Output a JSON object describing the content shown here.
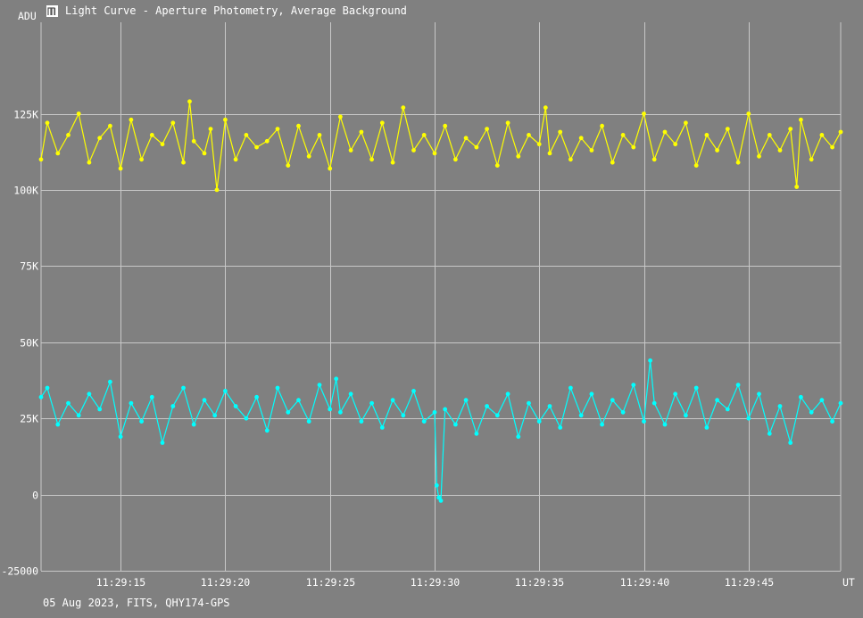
{
  "window": {
    "title": "Light Curve - Aperture Photometry, Average Background"
  },
  "footer": {
    "text": "05 Aug 2023, FITS, QHY174-GPS"
  },
  "colors": {
    "background": "#808080",
    "grid": "#c8c8c8",
    "series_yellow": "#ffff00",
    "series_cyan": "#00ffff"
  },
  "chart_data": {
    "type": "line",
    "ylabel": "ADU",
    "xlabel": "UT",
    "ylim": [
      -25000,
      155000
    ],
    "xlim": [
      11.2,
      49.4
    ],
    "y_ticks": [
      {
        "value": -25000,
        "label": "-25000"
      },
      {
        "value": 0,
        "label": "0"
      },
      {
        "value": 25000,
        "label": "25K"
      },
      {
        "value": 50000,
        "label": "50K"
      },
      {
        "value": 75000,
        "label": "75K"
      },
      {
        "value": 100000,
        "label": "100K"
      },
      {
        "value": 125000,
        "label": "125K"
      }
    ],
    "x_ticks": [
      {
        "value": 15,
        "label": "11:29:15"
      },
      {
        "value": 20,
        "label": "11:29:20"
      },
      {
        "value": 25,
        "label": "11:29:25"
      },
      {
        "value": 30,
        "label": "11:29:30"
      },
      {
        "value": 35,
        "label": "11:29:35"
      },
      {
        "value": 40,
        "label": "11:29:40"
      },
      {
        "value": 45,
        "label": "11:29:45"
      }
    ],
    "grid": true,
    "series": [
      {
        "color": "#ffff00",
        "x": [
          11.2,
          11.5,
          12,
          12.5,
          13,
          13.5,
          14,
          14.5,
          15,
          15.5,
          16,
          16.5,
          17,
          17.5,
          18,
          18.3,
          18.5,
          19,
          19.3,
          19.6,
          20,
          20.5,
          21,
          21.5,
          22,
          22.5,
          23,
          23.5,
          24,
          24.5,
          25,
          25.5,
          26,
          26.5,
          27,
          27.5,
          28,
          28.5,
          29,
          29.5,
          30,
          30.5,
          31,
          31.5,
          32,
          32.5,
          33,
          33.5,
          34,
          34.5,
          35,
          35.3,
          35.5,
          36,
          36.5,
          37,
          37.5,
          38,
          38.5,
          39,
          39.5,
          40,
          40.5,
          41,
          41.5,
          42,
          42.5,
          43,
          43.5,
          44,
          44.5,
          45,
          45.5,
          46,
          46.5,
          47,
          47.3,
          47.5,
          48,
          48.5,
          49,
          49.4
        ],
        "y": [
          110000,
          122000,
          112000,
          118000,
          125000,
          109000,
          117000,
          121000,
          107000,
          123000,
          110000,
          118000,
          115000,
          122000,
          109000,
          129000,
          116000,
          112000,
          120000,
          100000,
          123000,
          110000,
          118000,
          114000,
          116000,
          120000,
          108000,
          121000,
          111000,
          118000,
          107000,
          124000,
          113000,
          119000,
          110000,
          122000,
          109000,
          127000,
          113000,
          118000,
          112000,
          121000,
          110000,
          117000,
          114000,
          120000,
          108000,
          122000,
          111000,
          118000,
          115000,
          127000,
          112000,
          119000,
          110000,
          117000,
          113000,
          121000,
          109000,
          118000,
          114000,
          125000,
          110000,
          119000,
          115000,
          122000,
          108000,
          118000,
          113000,
          120000,
          109000,
          125000,
          111000,
          118000,
          113000,
          120000,
          101000,
          123000,
          110000,
          118000,
          114000,
          119000
        ]
      },
      {
        "color": "#00ffff",
        "x": [
          11.2,
          11.5,
          12,
          12.5,
          13,
          13.5,
          14,
          14.5,
          15,
          15.5,
          16,
          16.5,
          17,
          17.5,
          18,
          18.5,
          19,
          19.5,
          20,
          20.5,
          21,
          21.5,
          22,
          22.5,
          23,
          23.5,
          24,
          24.5,
          25,
          25.3,
          25.5,
          26,
          26.5,
          27,
          27.5,
          28,
          28.5,
          29,
          29.5,
          30,
          30.1,
          30.2,
          30.3,
          30.5,
          31,
          31.5,
          32,
          32.5,
          33,
          33.5,
          34,
          34.5,
          35,
          35.5,
          36,
          36.5,
          37,
          37.5,
          38,
          38.5,
          39,
          39.5,
          40,
          40.3,
          40.5,
          41,
          41.5,
          42,
          42.5,
          43,
          43.5,
          44,
          44.5,
          45,
          45.5,
          46,
          46.5,
          47,
          47.5,
          48,
          48.5,
          49,
          49.4
        ],
        "y": [
          32000,
          35000,
          23000,
          30000,
          26000,
          33000,
          28000,
          37000,
          19000,
          30000,
          24000,
          32000,
          17000,
          29000,
          35000,
          23000,
          31000,
          26000,
          34000,
          29000,
          25000,
          32000,
          21000,
          35000,
          27000,
          31000,
          24000,
          36000,
          28000,
          38000,
          27000,
          33000,
          24000,
          30000,
          22000,
          31000,
          26000,
          34000,
          24000,
          27000,
          3000,
          -1000,
          -2000,
          28000,
          23000,
          31000,
          20000,
          29000,
          26000,
          33000,
          19000,
          30000,
          24000,
          29000,
          22000,
          35000,
          26000,
          33000,
          23000,
          31000,
          27000,
          36000,
          24000,
          44000,
          30000,
          23000,
          33000,
          26000,
          35000,
          22000,
          31000,
          28000,
          36000,
          25000,
          33000,
          20000,
          29000,
          17000,
          32000,
          27000,
          31000,
          24000,
          30000
        ]
      }
    ]
  }
}
